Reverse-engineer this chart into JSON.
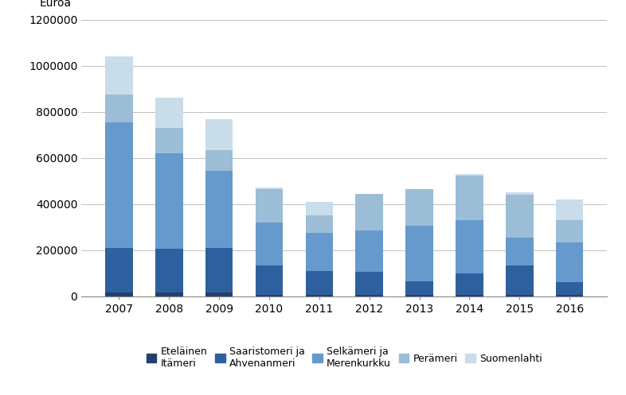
{
  "years": [
    2007,
    2008,
    2009,
    2010,
    2011,
    2012,
    2013,
    2014,
    2015,
    2016
  ],
  "series": {
    "Eteläinen\nItämeri": [
      15000,
      15000,
      15000,
      5000,
      5000,
      5000,
      5000,
      5000,
      5000,
      5000
    ],
    "Saaristomeri ja\nAhvenanmeri": [
      195000,
      190000,
      195000,
      130000,
      105000,
      100000,
      60000,
      95000,
      130000,
      55000
    ],
    "Selkämeri ja\nMerenkurkku": [
      545000,
      415000,
      335000,
      185000,
      165000,
      180000,
      240000,
      230000,
      120000,
      175000
    ],
    "Perämeri": [
      120000,
      110000,
      90000,
      145000,
      75000,
      160000,
      160000,
      195000,
      185000,
      95000
    ],
    "Suomenlahti": [
      165000,
      130000,
      135000,
      5000,
      60000,
      0,
      0,
      5000,
      10000,
      90000
    ]
  },
  "colors": {
    "Eteläinen\nItämeri": "#243f6a",
    "Saaristomeri ja\nAhvenanmeri": "#2e5f9e",
    "Selkämeri ja\nMerenkurkku": "#6699cc",
    "Perämeri": "#9bbdd6",
    "Suomenlahti": "#c8dcea"
  },
  "ylabel": "Euroa",
  "ylim": [
    0,
    1200000
  ],
  "yticks": [
    0,
    200000,
    400000,
    600000,
    800000,
    1000000,
    1200000
  ],
  "background_color": "#ffffff",
  "grid_color": "#c0c0c0",
  "title_ylabel": "Euroa"
}
